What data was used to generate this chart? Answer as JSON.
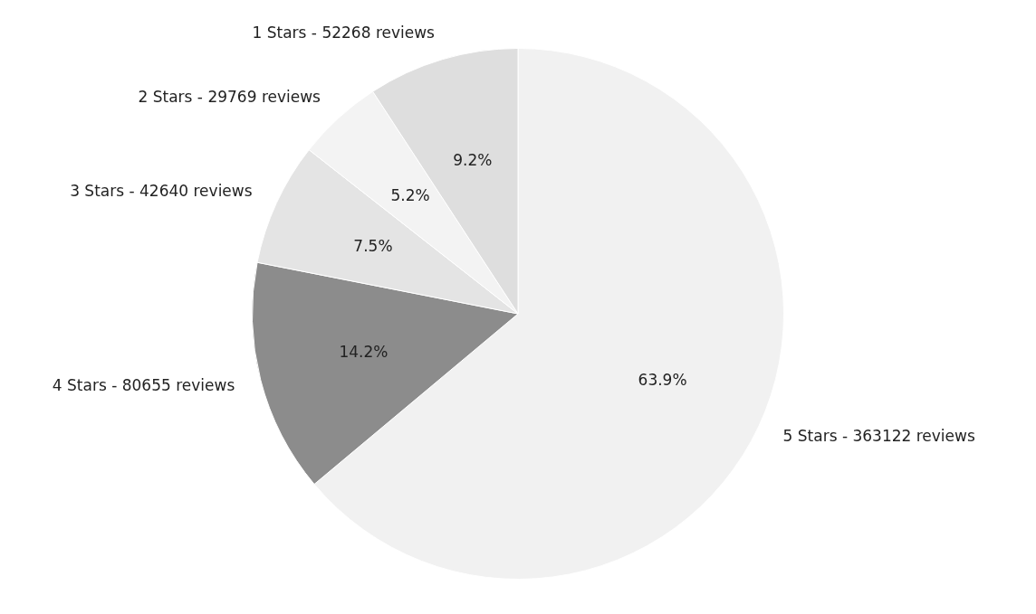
{
  "chart_data": {
    "type": "pie",
    "categories": [
      "1 Stars - 52268 reviews",
      "2 Stars - 29769 reviews",
      "3 Stars - 42640 reviews",
      "4 Stars - 80655 reviews",
      "5 Stars - 363122 reviews"
    ],
    "values": [
      9.2,
      5.2,
      7.5,
      14.2,
      63.9
    ],
    "value_labels": [
      "9.2%",
      "5.2%",
      "7.5%",
      "14.2%",
      "63.9%"
    ],
    "colors": [
      "#dedede",
      "#f3f3f3",
      "#e4e4e4",
      "#8c8c8c",
      "#f1f1f1"
    ]
  }
}
